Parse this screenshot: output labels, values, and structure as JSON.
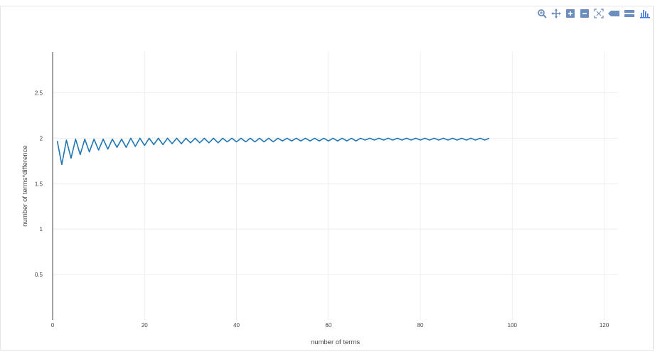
{
  "toolbar": {
    "icons": [
      "zoom-icon",
      "pan-icon",
      "zoom-in-icon",
      "zoom-out-icon",
      "autoscale-icon",
      "spike-lines-icon",
      "hover-compare-icon",
      "plotly-logo-icon"
    ],
    "accent_color": "#6c8ebf"
  },
  "chart_data": {
    "type": "line",
    "xlabel": "number of terms",
    "ylabel": "number of terms*difference",
    "xlim": [
      0,
      123
    ],
    "ylim": [
      0,
      2.95
    ],
    "x_ticks": [
      0,
      20,
      40,
      60,
      80,
      100,
      120
    ],
    "y_ticks": [
      0.5,
      1,
      1.5,
      2,
      2.5
    ],
    "x_tick_labels": [
      "0",
      "20",
      "40",
      "60",
      "80",
      "100",
      "120"
    ],
    "y_tick_labels": [
      "0.5",
      "1",
      "1.5",
      "2",
      "2.5"
    ],
    "grid": true,
    "line_color": "#1f77b4",
    "series": [
      {
        "x_start": 1,
        "x_end": 95,
        "pattern": "alternating: odd n approx 2, even n dips below 2 converging toward 2",
        "values": [
          1.97,
          1.71,
          1.98,
          1.78,
          1.99,
          1.82,
          1.99,
          1.85,
          1.99,
          1.87,
          1.99,
          1.88,
          1.99,
          1.9,
          1.99,
          1.9,
          2.0,
          1.91,
          2.0,
          1.92,
          2.0,
          1.93,
          2.0,
          1.93,
          2.0,
          1.94,
          2.0,
          1.94,
          2.0,
          1.95,
          2.0,
          1.95,
          2.0,
          1.95,
          2.0,
          1.95,
          2.0,
          1.96,
          2.0,
          1.96,
          2.0,
          1.96,
          2.0,
          1.96,
          2.0,
          1.96,
          2.0,
          1.96,
          2.0,
          1.97,
          2.0,
          1.97,
          2.0,
          1.97,
          2.0,
          1.97,
          2.0,
          1.97,
          2.0,
          1.97,
          2.0,
          1.97,
          2.0,
          1.97,
          2.0,
          1.97,
          2.0,
          1.98,
          2.0,
          1.98,
          2.0,
          1.98,
          2.0,
          1.98,
          2.0,
          1.98,
          2.0,
          1.98,
          2.0,
          1.98,
          2.0,
          1.98,
          2.0,
          1.98,
          2.0,
          1.98,
          2.0,
          1.98,
          2.0,
          1.98,
          2.0,
          1.98,
          2.0,
          1.98,
          2.0
        ]
      }
    ]
  }
}
